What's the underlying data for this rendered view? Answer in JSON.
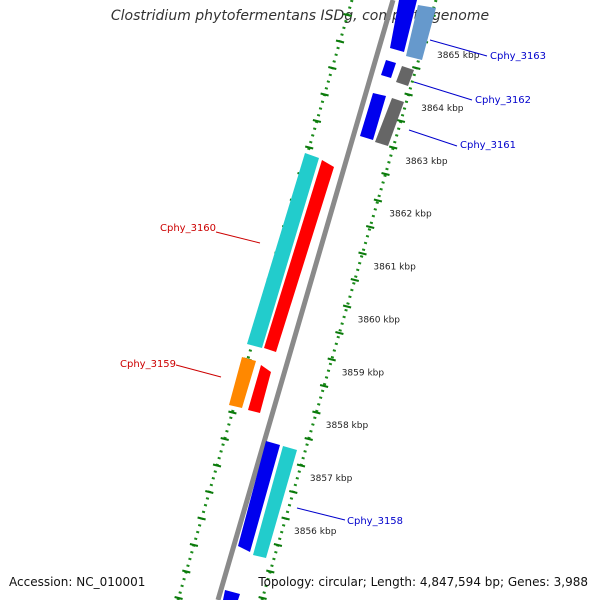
{
  "title": "Clostridium phytofermentans ISDg, complete genome",
  "footer": {
    "accession": "Accession: NC_010001",
    "summary": "Topology: circular; Length: 4,847,594 bp; Genes: 3,988"
  },
  "axis": {
    "ticks": [
      "3856 kbp",
      "3857 kbp",
      "3858 kbp",
      "3859 kbp",
      "3860 kbp",
      "3861 kbp",
      "3862 kbp",
      "3863 kbp",
      "3864 kbp",
      "3865 kbp"
    ]
  },
  "gene_labels": [
    {
      "text": "Cphy_3163",
      "color": "#0000cc"
    },
    {
      "text": "Cphy_3162",
      "color": "#0000cc"
    },
    {
      "text": "Cphy_3161",
      "color": "#0000cc"
    },
    {
      "text": "Cphy_3160",
      "color": "#cc0000"
    },
    {
      "text": "Cphy_3159",
      "color": "#cc0000"
    },
    {
      "text": "Cphy_3158",
      "color": "#0000cc"
    }
  ],
  "colors": {
    "backbone": "#888888",
    "tick_dots": "#1a8a1a",
    "red": "#ff0000",
    "cyan": "#22cccc",
    "blue": "#0000ee",
    "orange": "#ff8800",
    "gray": "#666666",
    "lightblue": "#6699cc"
  }
}
